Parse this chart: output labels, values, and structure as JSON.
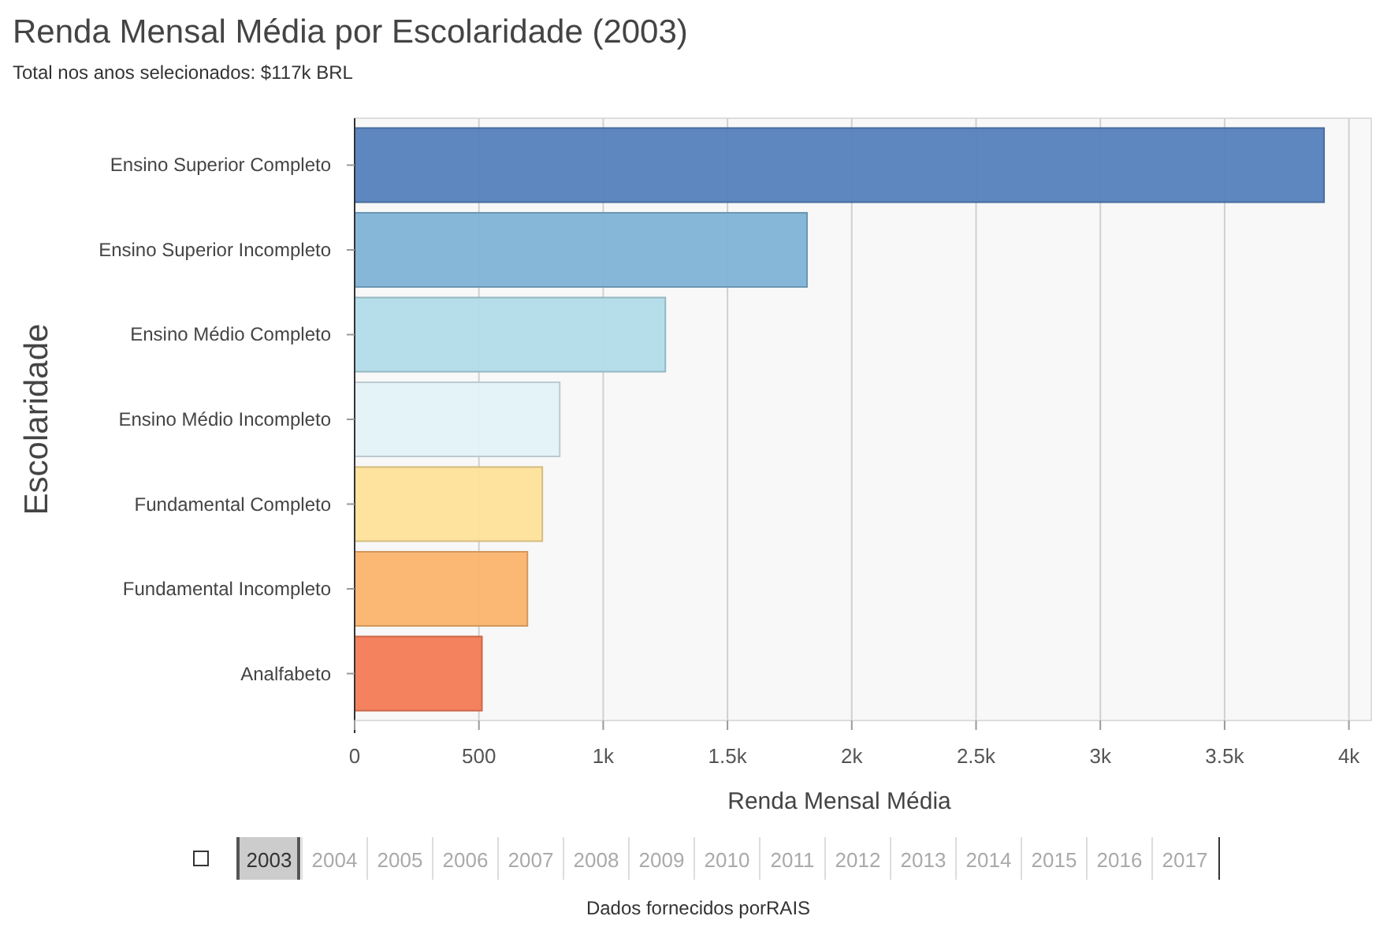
{
  "chart_data": {
    "type": "bar",
    "orientation": "horizontal",
    "title": "Renda Mensal Média por Escolaridade (2003)",
    "subtitle": "Total nos anos selecionados: $117k BRL",
    "xlabel": "Renda Mensal Média",
    "ylabel": "Escolaridade",
    "categories": [
      "Ensino Superior Completo",
      "Ensino Superior Incompleto",
      "Ensino Médio Completo",
      "Ensino Médio Incompleto",
      "Fundamental Completo",
      "Fundamental Incompleto",
      "Analfabeto"
    ],
    "values": [
      3900,
      1820,
      1250,
      825,
      755,
      695,
      512
    ],
    "colors": [
      "#5581bd",
      "#80b3d6",
      "#b2dce9",
      "#e1f2f7",
      "#fde199",
      "#fbb46e",
      "#f47b56"
    ],
    "xlim": [
      0,
      4090
    ],
    "xticks": [
      0,
      500,
      {
        "value": 1000,
        "label": "1k"
      },
      {
        "value": 1500,
        "label": "1.5k"
      },
      {
        "value": 2000,
        "label": "2k"
      },
      {
        "value": 2500,
        "label": "2.5k"
      },
      {
        "value": 3000,
        "label": "3k"
      },
      {
        "value": 3500,
        "label": "3.5k"
      },
      {
        "value": 4000,
        "label": "4k"
      }
    ],
    "grid": "x",
    "annotations": [
      "2003",
      "2004",
      "2005",
      "2006",
      "2007",
      "2008",
      "2009",
      "2010",
      "2011",
      "2012",
      "2013",
      "2014",
      "2015",
      "2016",
      "2017",
      "Dados fornecidos porRAIS"
    ]
  }
}
